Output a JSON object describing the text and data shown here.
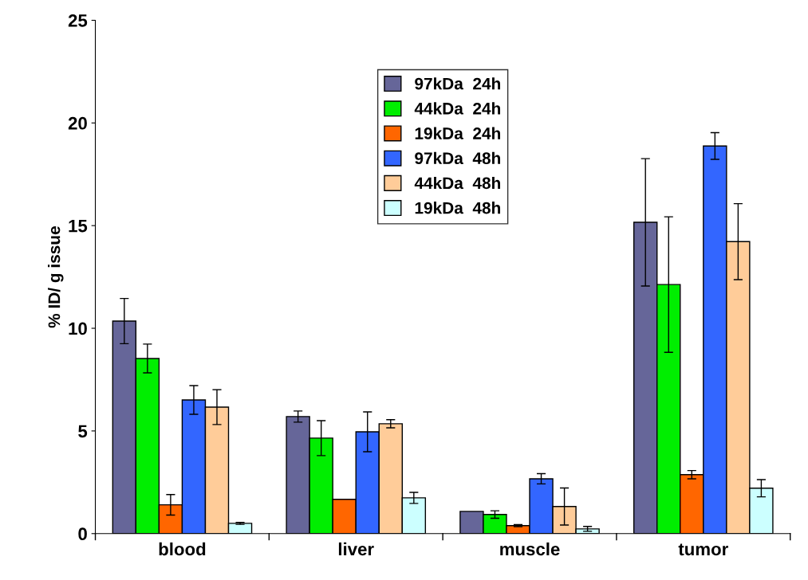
{
  "chart_data": {
    "type": "bar",
    "ylabel": "% ID/ g issue",
    "categories": [
      "blood",
      "liver",
      "muscle",
      "tumor"
    ],
    "ylim": [
      0,
      25
    ],
    "yticks": [
      0,
      5,
      10,
      15,
      20,
      25
    ],
    "grid": false,
    "legend": "top",
    "series": [
      {
        "name": "97kDa  24h",
        "color": "#666699",
        "values": [
          10.35,
          5.7,
          1.08,
          15.16
        ],
        "errors": [
          1.1,
          0.27,
          null,
          3.1
        ]
      },
      {
        "name": "44kDa  24h",
        "color": "#00ee00",
        "values": [
          8.53,
          4.65,
          0.93,
          12.13
        ],
        "errors": [
          0.7,
          0.85,
          0.18,
          3.3
        ]
      },
      {
        "name": "19kDa  24h",
        "color": "#ff6600",
        "values": [
          1.4,
          1.67,
          0.39,
          2.87
        ],
        "errors": [
          0.5,
          null,
          0.05,
          0.2
        ]
      },
      {
        "name": "97kDa  48h",
        "color": "#3366ff",
        "values": [
          6.51,
          4.96,
          2.67,
          18.88
        ],
        "errors": [
          0.7,
          0.97,
          0.25,
          0.65
        ]
      },
      {
        "name": "44kDa  48h",
        "color": "#ffcc99",
        "values": [
          6.16,
          5.35,
          1.32,
          14.22
        ],
        "errors": [
          0.85,
          0.2,
          0.9,
          1.85
        ]
      },
      {
        "name": "19kDa  48h",
        "color": "#ccffff",
        "values": [
          0.5,
          1.74,
          0.23,
          2.21
        ],
        "errors": [
          0.05,
          0.27,
          0.12,
          0.42
        ]
      }
    ]
  }
}
